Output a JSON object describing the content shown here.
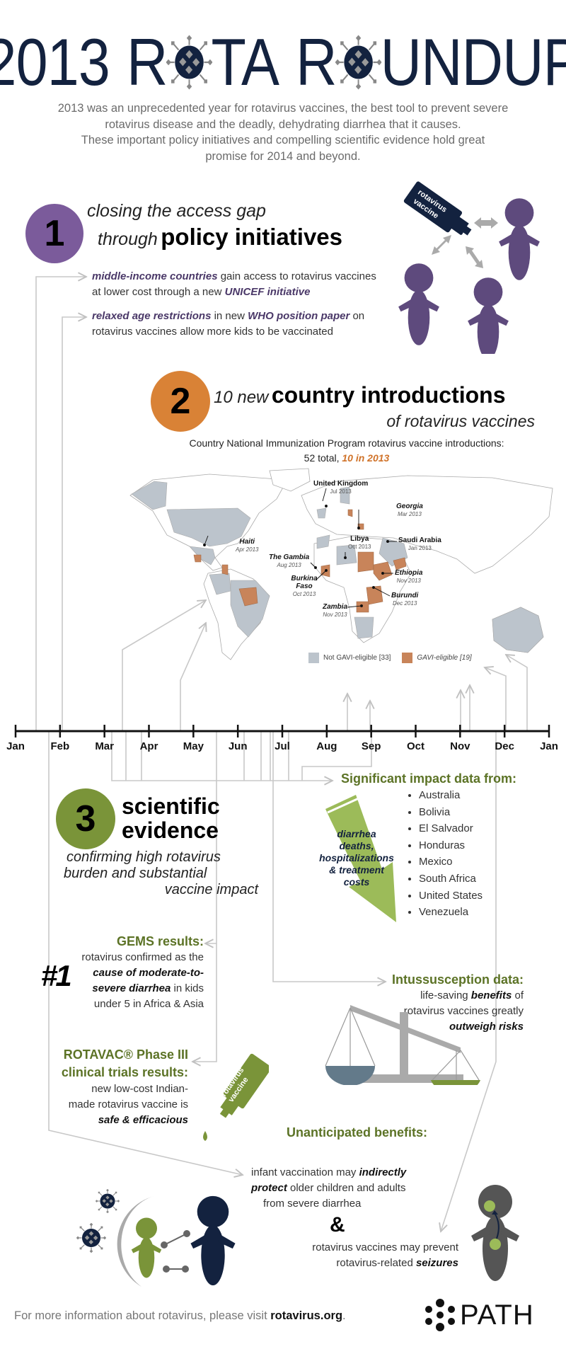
{
  "header": {
    "title_parts": [
      "2013",
      "R",
      "TA",
      "R",
      "UNDUP"
    ],
    "title_icon": "rotavirus-icon",
    "subtitle_lines": [
      "2013 was an unprecedented year for rotavirus vaccines, the best tool to prevent severe",
      "rotavirus disease and the deadly, dehydrating diarrhea that it causes.",
      "These important policy initiatives and compelling scientific evidence hold great",
      "promise for 2014 and beyond."
    ]
  },
  "section1": {
    "number": "1",
    "heading_line1": "closing the access gap",
    "heading_pre": "through",
    "heading_bold": "policy initiatives",
    "color": "#7b5b9b",
    "bottle_label_1": "rotavirus",
    "bottle_label_2": "vaccine",
    "items": [
      {
        "em1": "middle-income countries",
        "t1": " gain access to rotavirus vaccines",
        "t2": "at lower cost through a new ",
        "em2": "UNICEF initiative"
      },
      {
        "em1": "relaxed age restrictions",
        "t1": " in new ",
        "em2": "WHO position paper",
        "t3": " on",
        "t2": "rotavirus vaccines allow more kids to be vaccinated"
      }
    ]
  },
  "section2": {
    "number": "2",
    "heading_pre": "10 new",
    "heading_bold": "country introductions",
    "heading_sub": "of rotavirus vaccines",
    "color": "#d98236",
    "caption_line1": "Country National Immunization Program rotavirus vaccine introductions:",
    "caption_pre": "52 total, ",
    "caption_em": "10 in 2013",
    "map": {
      "legend": [
        {
          "label": "Not GAVI-eligible [33]",
          "color": "#bcc4cc"
        },
        {
          "label": "GAVI-eligible [19]",
          "color": "#c8845a"
        }
      ],
      "introductions_2013": [
        {
          "country": "United Kingdom",
          "date": "Jul 2013",
          "gavi_eligible": false
        },
        {
          "country": "Georgia",
          "date": "Mar 2013",
          "gavi_eligible": true
        },
        {
          "country": "Haiti",
          "date": "Apr 2013",
          "gavi_eligible": true
        },
        {
          "country": "Libya",
          "date": "Oct 2013",
          "gavi_eligible": false
        },
        {
          "country": "Saudi Arabia",
          "date": "Jan 2013",
          "gavi_eligible": false
        },
        {
          "country": "The Gambia",
          "date": "Aug 2013",
          "gavi_eligible": true
        },
        {
          "country": "Ethiopia",
          "date": "Nov 2013",
          "gavi_eligible": true
        },
        {
          "country": "Burkina Faso",
          "date": "Oct 2013",
          "gavi_eligible": true
        },
        {
          "country": "Burundi",
          "date": "Dec 2013",
          "gavi_eligible": true
        },
        {
          "country": "Zambia",
          "date": "Nov 2013",
          "gavi_eligible": true
        }
      ]
    }
  },
  "timeline": {
    "months": [
      "Jan",
      "Feb",
      "Mar",
      "Apr",
      "May",
      "Jun",
      "Jul",
      "Aug",
      "Sep",
      "Oct",
      "Nov",
      "Dec",
      "Jan"
    ]
  },
  "section3": {
    "number": "3",
    "heading_line1": "scientific",
    "heading_line2": "evidence",
    "sub_lines": [
      "confirming high rotavirus",
      "burden and substantial",
      "vaccine impact"
    ],
    "color": "#7a9439",
    "impact": {
      "heading": "Significant impact data from:",
      "countries": [
        "Australia",
        "Bolivia",
        "El Salvador",
        "Honduras",
        "Mexico",
        "South Africa",
        "United States",
        "Venezuela"
      ],
      "arrow_text": [
        "diarrhea",
        "deaths,",
        "hospitalizations",
        "& treatment",
        "costs"
      ]
    },
    "gems": {
      "heading": "GEMS results:",
      "line1": "rotavirus confirmed as the",
      "big": "#1",
      "em1": "cause of moderate-to-",
      "em2": "severe diarrhea",
      "t2": " in kids",
      "line4": "under 5 in Africa & Asia"
    },
    "intus": {
      "heading": "Intussusception data:",
      "t1": "life-saving ",
      "em1": "benefits",
      "t1b": " of",
      "line2": "rotavirus vaccines greatly",
      "em3": "outweigh risks"
    },
    "rotavac": {
      "heading1": "ROTAVAC® Phase III",
      "heading2": "clinical trials results:",
      "line1": "new low-cost Indian-",
      "line2": "made rotavirus vaccine is",
      "em3": "safe & efficacious",
      "bottle_label_1": "rotavirus",
      "bottle_label_2": "vaccine"
    },
    "benefits": {
      "heading": "Unanticipated benefits:",
      "l1": "infant vaccination may ",
      "em1": "indirectly",
      "em2": "protect",
      "l2": " older children and adults",
      "l3": "from severe diarrhea",
      "amp": "&",
      "l4": "rotavirus vaccines may prevent",
      "l5": "rotavirus-related ",
      "em5": "seizures"
    }
  },
  "footer": {
    "text": "For more information about rotavirus, please visit ",
    "link": "rotavirus.org",
    "period": ".",
    "logo_text": "PATH"
  },
  "colors": {
    "navy": "#13223f",
    "purple": "#7b5b9b",
    "orange": "#d98236",
    "green": "#7a9439",
    "olive": "#5c7326",
    "arrow_green": "#9cbb59",
    "connector_gray": "#c8c8c8"
  }
}
